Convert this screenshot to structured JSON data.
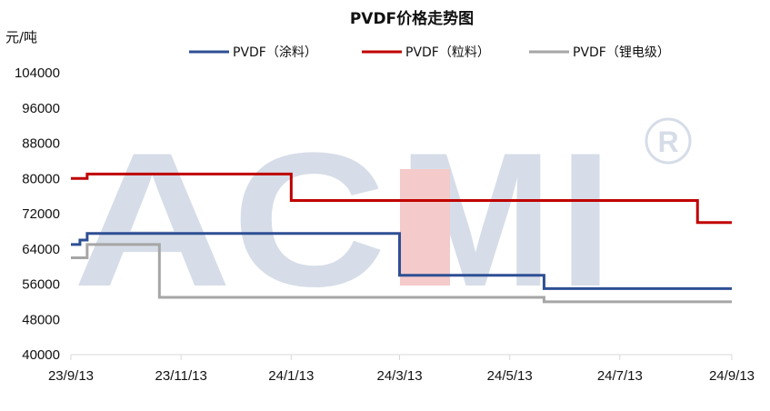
{
  "chart_data": {
    "type": "line",
    "title": "PVDF价格走势图",
    "unit_label": "元/吨",
    "xlabel": "",
    "ylabel": "元/吨",
    "ylim": [
      40000,
      104000
    ],
    "yticks": [
      40000,
      48000,
      56000,
      64000,
      72000,
      80000,
      88000,
      96000,
      104000
    ],
    "xlim": [
      "2023-09-13",
      "2024-09-13"
    ],
    "xtick_labels": [
      "23/9/13",
      "23/11/13",
      "24/1/13",
      "24/3/13",
      "24/5/13",
      "24/7/13",
      "24/9/13"
    ],
    "xtick_dates": [
      "2023-09-13",
      "2023-11-13",
      "2024-01-13",
      "2024-03-13",
      "2024-05-13",
      "2024-07-13",
      "2024-09-13"
    ],
    "grid": false,
    "legend_position": "top",
    "step": true,
    "series": [
      {
        "name": "PVDF（涂料）",
        "color": "#2E4F94",
        "points": [
          [
            "2023-09-13",
            65000
          ],
          [
            "2023-09-18",
            66000
          ],
          [
            "2023-09-22",
            67500
          ],
          [
            "2024-03-13",
            58000
          ],
          [
            "2024-06-01",
            55000
          ],
          [
            "2024-09-13",
            55000
          ]
        ]
      },
      {
        "name": "PVDF（粒料）",
        "color": "#C00000",
        "points": [
          [
            "2023-09-13",
            80000
          ],
          [
            "2023-09-22",
            81000
          ],
          [
            "2024-01-13",
            75000
          ],
          [
            "2024-08-25",
            70000
          ],
          [
            "2024-09-13",
            70000
          ]
        ]
      },
      {
        "name": "PVDF（锂电级）",
        "color": "#A6A6A6",
        "points": [
          [
            "2023-09-13",
            62000
          ],
          [
            "2023-09-22",
            65000
          ],
          [
            "2023-11-01",
            53000
          ],
          [
            "2024-06-01",
            52000
          ],
          [
            "2024-09-13",
            52000
          ]
        ]
      }
    ]
  },
  "watermark": {
    "text": "ACMI",
    "mark": "®"
  }
}
